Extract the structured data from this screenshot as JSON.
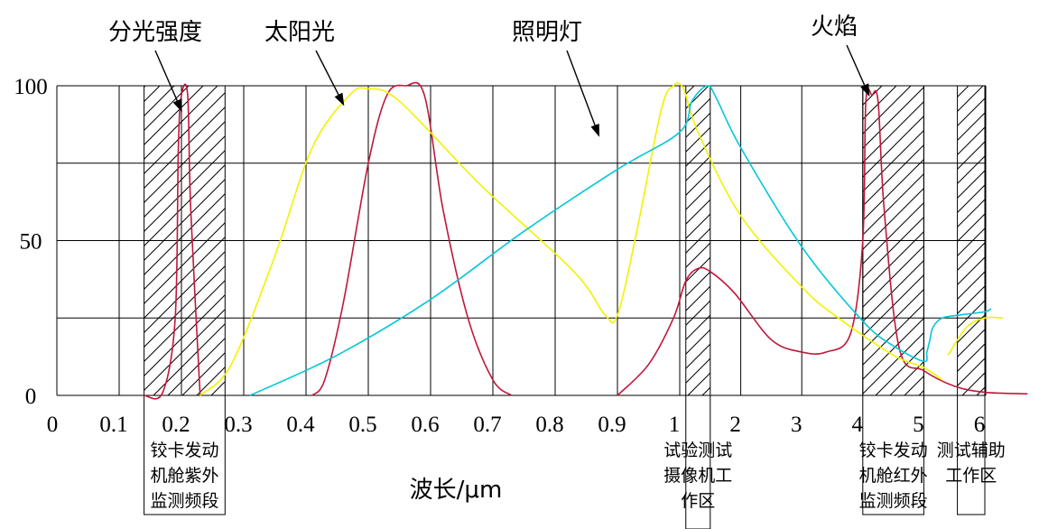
{
  "chart_data": {
    "type": "line",
    "title": "",
    "xlabel": "波长/μm",
    "ylabel": "",
    "ylim": [
      0,
      100
    ],
    "ytick_labels": [
      "0",
      "50",
      "100"
    ],
    "xtick_labels": [
      "0",
      "0.1",
      "0.2",
      "0.3",
      "0.4",
      "0.5",
      "0.6",
      "0.7",
      "0.8",
      "0.9",
      "1",
      "2",
      "3",
      "4",
      "5",
      "6"
    ],
    "grid": true,
    "x_scale": "piecewise: linear 0–1 (step 0.1), then linear 1–6 (step 1) with compressed spacing",
    "series": [
      {
        "name": "分光强度",
        "color": "#c0173a",
        "segments": [
          [
            [
              0.14,
              0
            ],
            [
              0.17,
              1
            ],
            [
              0.19,
              25
            ],
            [
              0.195,
              80
            ],
            [
              0.2,
              97
            ],
            [
              0.21,
              97
            ],
            [
              0.215,
              60
            ],
            [
              0.23,
              0
            ]
          ],
          [
            [
              0.41,
              0
            ],
            [
              0.43,
              5
            ],
            [
              0.46,
              30
            ],
            [
              0.5,
              75
            ],
            [
              0.53,
              97
            ],
            [
              0.56,
              100
            ],
            [
              0.59,
              97
            ],
            [
              0.62,
              60
            ],
            [
              0.66,
              25
            ],
            [
              0.7,
              5
            ],
            [
              0.73,
              0
            ]
          ],
          [
            [
              0.9,
              0
            ],
            [
              0.95,
              10
            ],
            [
              0.99,
              25
            ],
            [
              1.1,
              37
            ],
            [
              1.3,
              41
            ],
            [
              1.5,
              40
            ],
            [
              1.9,
              33
            ],
            [
              2.5,
              18
            ],
            [
              3.0,
              14
            ],
            [
              3.4,
              14
            ],
            [
              3.8,
              20
            ],
            [
              4.0,
              50
            ],
            [
              4.05,
              95
            ],
            [
              4.15,
              97
            ],
            [
              4.25,
              95
            ],
            [
              4.35,
              60
            ],
            [
              4.6,
              15
            ],
            [
              5.0,
              8
            ],
            [
              5.5,
              3
            ],
            [
              6.0,
              1
            ],
            [
              6.7,
              0.5
            ]
          ]
        ]
      },
      {
        "name": "太阳光",
        "color": "#f2f200",
        "segments": [
          [
            [
              0.23,
              0
            ],
            [
              0.28,
              10
            ],
            [
              0.35,
              45
            ],
            [
              0.41,
              80
            ],
            [
              0.47,
              97
            ],
            [
              0.5,
              99
            ],
            [
              0.55,
              95
            ],
            [
              0.68,
              68
            ],
            [
              0.83,
              40
            ],
            [
              0.88,
              26
            ],
            [
              0.9,
              26
            ],
            [
              0.93,
              52
            ],
            [
              0.97,
              92
            ],
            [
              0.99,
              100
            ],
            [
              1.06,
              99
            ],
            [
              1.3,
              85
            ],
            [
              2.0,
              58
            ],
            [
              3.0,
              35
            ],
            [
              3.6,
              25
            ],
            [
              4.5,
              13
            ],
            [
              5.0,
              9
            ],
            [
              5.3,
              5
            ]
          ],
          [
            [
              5.4,
              13
            ],
            [
              5.7,
              22
            ],
            [
              6.0,
              25
            ],
            [
              6.3,
              25
            ]
          ]
        ]
      },
      {
        "name": "照明灯",
        "color": "#00c8d8",
        "segments": [
          [
            [
              0.31,
              0
            ],
            [
              0.45,
              13
            ],
            [
              0.6,
              31
            ],
            [
              0.75,
              53
            ],
            [
              0.9,
              73
            ],
            [
              1.0,
              85
            ],
            [
              1.2,
              95
            ],
            [
              1.45,
              100
            ],
            [
              1.6,
              96
            ],
            [
              2.0,
              80
            ],
            [
              3.0,
              48
            ],
            [
              4.0,
              24
            ],
            [
              4.5,
              16
            ],
            [
              5.0,
              11
            ],
            [
              5.05,
              14
            ],
            [
              5.1,
              18
            ],
            [
              5.15,
              22
            ],
            [
              5.3,
              25
            ],
            [
              5.6,
              26
            ],
            [
              6.0,
              27
            ],
            [
              6.1,
              28
            ]
          ]
        ]
      }
    ],
    "bands": [
      {
        "label_lines": [
          "铰卡发动",
          "机舱紫外",
          "监测频段"
        ],
        "x_range": [
          0.14,
          0.27
        ],
        "hatched_segments": [
          [
            0.14,
            0.2
          ],
          [
            0.2,
            0.27
          ]
        ]
      },
      {
        "label_lines": [
          "试验测试",
          "摄像机工",
          "作区"
        ],
        "x_range": [
          1.1,
          1.5
        ],
        "hatched_segments": [
          [
            1.1,
            1.5
          ]
        ]
      },
      {
        "label_lines": [
          "铰卡发动",
          "机舱红外",
          "监测频段"
        ],
        "x_range": [
          4.0,
          5.0
        ],
        "hatched_segments": [
          [
            4.0,
            5.0
          ]
        ]
      },
      {
        "label_lines": [
          "测试辅助",
          "工作区"
        ],
        "x_range": [
          5.55,
          6.0
        ],
        "hatched_segments": [
          [
            5.55,
            6.0
          ]
        ]
      }
    ],
    "annotations": [
      {
        "text": "分光强度",
        "points_to_series": "分光强度",
        "target": [
          0.2,
          92
        ]
      },
      {
        "text": "太阳光",
        "points_to_series": "太阳光",
        "target": [
          0.46,
          94
        ]
      },
      {
        "text": "照明灯",
        "points_to_series": "照明灯",
        "target": [
          0.87,
          84
        ]
      },
      {
        "text": "火焰",
        "points_to_series": "分光强度",
        "target": [
          4.1,
          97
        ]
      }
    ]
  }
}
